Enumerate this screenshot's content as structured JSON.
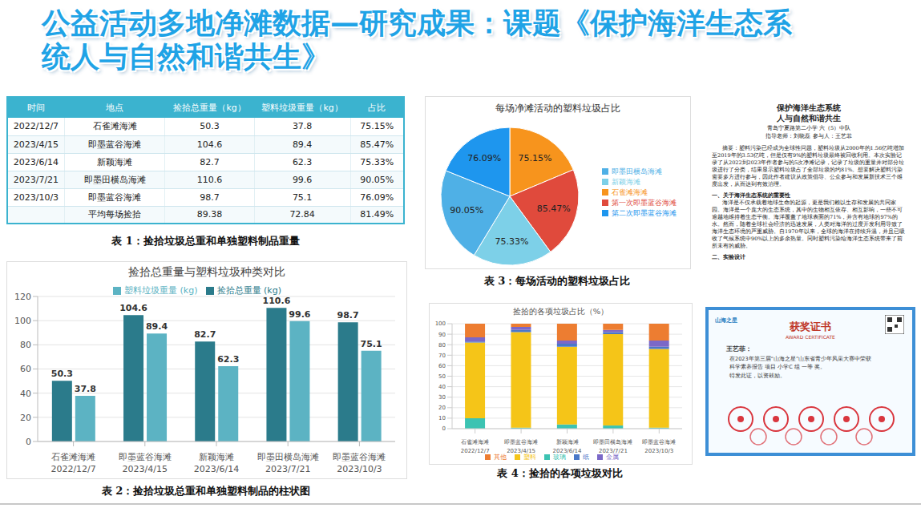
{
  "title": "公益活动多地净滩数据—研究成果：课题《保护海洋生态系统人与自然和谐共生》",
  "table": {
    "header": [
      "时间",
      "地点",
      "捡拾总重量（kg）",
      "塑料垃圾重量（kg）",
      "占比"
    ],
    "rows": [
      [
        "2022/12/7",
        "石雀滩海滩",
        "50.3",
        "37.8",
        "75.15%"
      ],
      [
        "2023/4/15",
        "即墨蓝谷海滩",
        "104.6",
        "89.4",
        "85.47%"
      ],
      [
        "2023/6/14",
        "新颖海滩",
        "82.7",
        "62.3",
        "75.33%"
      ],
      [
        "2023/7/21",
        "即墨田横岛海滩",
        "110.6",
        "99.6",
        "90.05%"
      ],
      [
        "2023/10/3",
        "即墨蓝谷海滩",
        "98.7",
        "75.1",
        "76.09%"
      ],
      [
        null,
        "平均每场捡拾",
        "89.38",
        "72.84",
        "81.49%"
      ]
    ],
    "caption": "表 1：捡拾垃圾总重和单独塑料制品重量"
  },
  "chart_data": [
    {
      "type": "bar",
      "title": "捡拾总重量与塑料垃圾种类对比",
      "categories": [
        "石雀滩海滩",
        "即墨蓝谷海滩",
        "新颖海滩",
        "即墨田横岛海滩",
        "即墨蓝谷海滩"
      ],
      "category_dates": [
        "2022/12/7",
        "2023/4/15",
        "2023/6/14",
        "2023/7/21",
        "2023/10/3"
      ],
      "series": [
        {
          "name": "捡拾总重量 (kg)",
          "color": "#2b7b8b",
          "values": [
            50.3,
            104.6,
            82.7,
            110.6,
            98.7
          ]
        },
        {
          "name": "塑料垃圾重量 (kg)",
          "color": "#5cb3c3",
          "values": [
            37.8,
            89.4,
            62.3,
            99.6,
            75.1
          ]
        }
      ],
      "ylim": [
        0,
        120
      ],
      "yticks": [
        0,
        20,
        40,
        60,
        80,
        100,
        120
      ],
      "grid": true,
      "legend": "top",
      "data_labels": true,
      "caption": "表 2：捡拾垃圾总重和单独塑料制品的柱状图"
    },
    {
      "type": "pie",
      "title": "每场净滩活动的塑料垃圾占比",
      "categories": [
        "石雀滩海滩",
        "第一次即墨蓝谷海滩",
        "新颖海滩",
        "即墨田横岛海滩",
        "第二次即墨蓝谷海滩"
      ],
      "values": [
        75.15,
        85.47,
        75.33,
        90.05,
        76.09
      ],
      "value_labels": [
        "75.15%",
        "85.47%",
        "75.33%",
        "90.05%",
        "76.09%"
      ],
      "colors": [
        "#f7941d",
        "#e04a3c",
        "#7dd0e8",
        "#4fb0e6",
        "#1e96ee"
      ],
      "legend": "right",
      "data_labels": true,
      "caption": "表 3：每场活动的塑料垃圾占比"
    },
    {
      "type": "bar",
      "stacked": true,
      "title": "捡拾的各项垃圾占比（%）",
      "categories": [
        "石雀滩海滩",
        "即墨蓝谷海滩",
        "新颖海滩",
        "即墨田横岛海滩",
        "即墨蓝谷海滩"
      ],
      "category_dates": [
        "2022/12/7",
        "2023/4/15",
        "2023/6/14",
        "2023/7/21",
        "2023/10/3"
      ],
      "series": [
        {
          "name": "玻璃",
          "color": "#3cc3b2",
          "values": [
            10,
            1,
            4,
            3,
            1
          ]
        },
        {
          "name": "塑料",
          "color": "#f5c518",
          "values": [
            72,
            91,
            74,
            87,
            75
          ]
        },
        {
          "name": "纸",
          "color": "#4a78c8",
          "values": [
            1,
            2,
            3,
            2,
            2
          ]
        },
        {
          "name": "金属",
          "color": "#7b68c8",
          "values": [
            4,
            3,
            3,
            2,
            6
          ]
        },
        {
          "name": "其他",
          "color": "#ed7d31",
          "values": [
            13,
            3,
            16,
            6,
            16
          ]
        }
      ],
      "ylim": [
        0,
        100
      ],
      "yticks": [
        0,
        10,
        20,
        30,
        40,
        50,
        60,
        70,
        80,
        90,
        100
      ],
      "grid": true,
      "legend": "bottom",
      "caption": "表 4：捡拾的各项垃圾对比"
    }
  ],
  "document": {
    "title_lines": [
      "保护海洋生态系统",
      "人与自然和谐共生"
    ],
    "school": "青岛宁夏路第二小学 六（5）中队",
    "authors": "指导老师：刘晓磊   参与人：王艺菲",
    "abstract": "摘要：塑料污染已经成为全球性问题，塑料垃圾从2000年的1.56亿吨增加至2019年的3.53亿吨，但是仅有9%的塑料垃圾最终被回收利用。本次实验记录了从2022到2023年作者参与的5次净滩记录，记录了垃圾的重量并对部分垃圾进行了分类，结果显示塑料垃圾占了全部垃圾的约81%。想要解决塑料污染需要多方进行参与，因此作者建议从政策倡导、公众参与和发展新技术三个维度出发，从而达到有效治理。",
    "sections": [
      {
        "heading": "一、关于海洋生态系统的重要性",
        "text": "海洋是不仅承载着地球生命的起源，更是我们赖以生存和发展的共同家园。海洋是一个庞大的生态系统，其中的生物相互依存、相互影响，一些不可逾越地维持着生态平衡。海洋覆盖了地球表面的71%，并含有地球的97%的水。然而，随着全球社会经济的迅速发展，人类对海洋的过度开发利用导致了海洋生态环境的严重威胁。自1970年以来，全球的海洋在持续升温，并且已吸收了气候系统中90%以上的多余热量。同时塑料污染给海洋生态系统带来了前所未有的威胁。"
      },
      {
        "heading": "二、实验设计",
        "text": ""
      }
    ]
  },
  "certificate": {
    "logo": "山海之星",
    "title": "获奖证书",
    "subtitle": "AWARD CERTIFICATE",
    "recipient": "王艺菲：",
    "body_lines": [
      "在2023年第三届“山海之星”山东省青少年风采大赛中荣获",
      "科学素养报告 项目 小学C 组 一等 奖。"
    ],
    "closing": "特发此证，以资鼓励。"
  }
}
